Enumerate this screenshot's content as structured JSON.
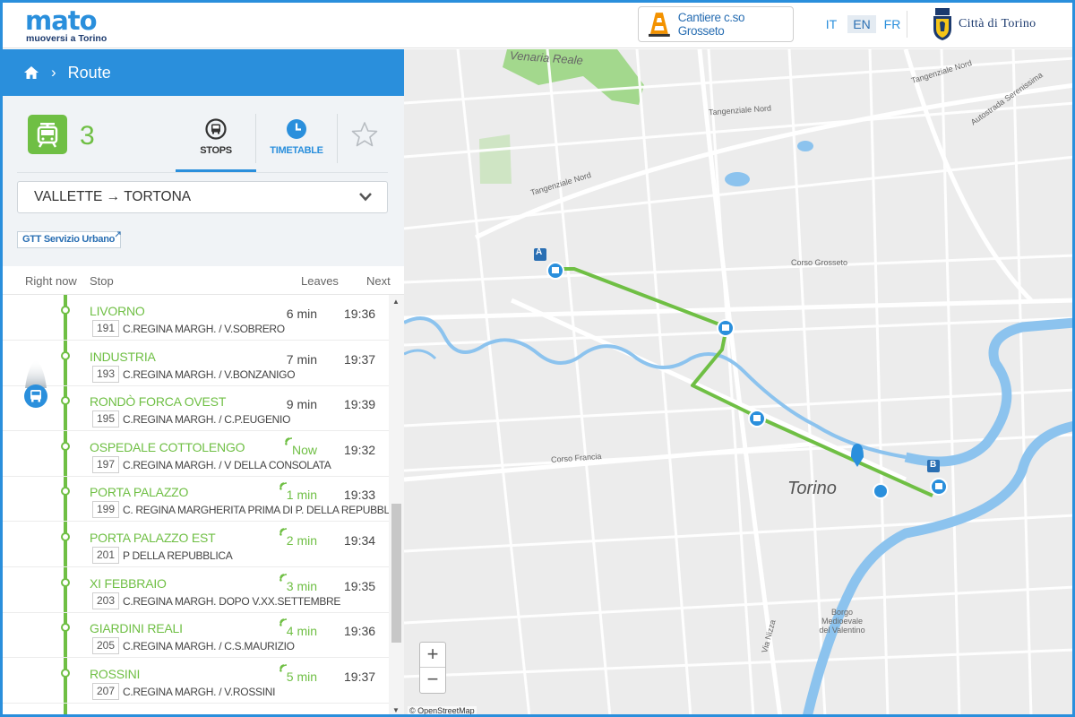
{
  "header": {
    "logo_word": "mato",
    "logo_tagline": "muoversi a Torino",
    "notice_button": "Cantiere c.so Grosseto",
    "languages": [
      "IT",
      "EN",
      "FR"
    ],
    "active_language": "EN",
    "city_name": "Città di Torino"
  },
  "breadcrumb": {
    "current": "Route"
  },
  "route": {
    "line_number": "3",
    "tabs": {
      "stops": "STOPS",
      "timetable": "TIMETABLE"
    },
    "direction": "VALLETTE → TORTONA",
    "operator_link": "GTT Servizio Urbano"
  },
  "table_header": {
    "right_now": "Right now",
    "stop": "Stop",
    "leaves": "Leaves",
    "next": "Next"
  },
  "stops": [
    {
      "name": "LIVORNO",
      "code": "191",
      "address": "C.REGINA MARGH. / V.SOBRERO",
      "leaves": "6 min",
      "next": "19:36",
      "realtime": false
    },
    {
      "name": "INDUSTRIA",
      "code": "193",
      "address": "C.REGINA MARGH. / V.BONZANIGO",
      "leaves": "7 min",
      "next": "19:37",
      "realtime": false
    },
    {
      "name": "RONDÒ FORCA OVEST",
      "code": "195",
      "address": "C.REGINA MARGH. / C.P.EUGENIO",
      "leaves": "9 min",
      "next": "19:39",
      "realtime": false
    },
    {
      "name": "OSPEDALE COTTOLENGO",
      "code": "197",
      "address": "C.REGINA MARGH. / V DELLA CONSOLATA",
      "leaves": "Now",
      "next": "19:32",
      "realtime": true
    },
    {
      "name": "PORTA PALAZZO",
      "code": "199",
      "address": "C. REGINA MARGHERITA PRIMA DI P. DELLA REPUBBLICA",
      "leaves": "1 min",
      "next": "19:33",
      "realtime": true
    },
    {
      "name": "PORTA PALAZZO EST",
      "code": "201",
      "address": "P DELLA REPUBBLICA",
      "leaves": "2 min",
      "next": "19:34",
      "realtime": true
    },
    {
      "name": "XI FEBBRAIO",
      "code": "203",
      "address": "C.REGINA MARGH. DOPO V.XX.SETTEMBRE",
      "leaves": "3 min",
      "next": "19:35",
      "realtime": true
    },
    {
      "name": "GIARDINI REALI",
      "code": "205",
      "address": "C.REGINA MARGH. / C.S.MAURIZIO",
      "leaves": "4 min",
      "next": "19:36",
      "realtime": true
    },
    {
      "name": "ROSSINI",
      "code": "207",
      "address": "C.REGINA MARGH. / V.ROSSINI",
      "leaves": "5 min",
      "next": "19:37",
      "realtime": true
    }
  ],
  "map": {
    "labels": {
      "venaria": "Venaria Reale",
      "tang_nord_1": "Tangenziale Nord",
      "tang_nord_2": "Tangenziale Nord",
      "tang_nord_3": "Tangenziale Nord",
      "autostrada": "Autostrada Serenissima",
      "grosseto": "Corso Grosseto",
      "francia": "Corso Francia",
      "torino": "Torino",
      "nizza": "Via Nizza",
      "borgo": "Borgo Medioevale del Valentino"
    },
    "markers": {
      "start": "A",
      "end": "B"
    },
    "zoom_in": "+",
    "zoom_out": "−",
    "attribution": "© OpenStreetMap"
  },
  "colors": {
    "accent": "#2a8fdc",
    "line_green": "#6fbf44",
    "river": "#8cc3ee",
    "park": "#a3d88d"
  }
}
